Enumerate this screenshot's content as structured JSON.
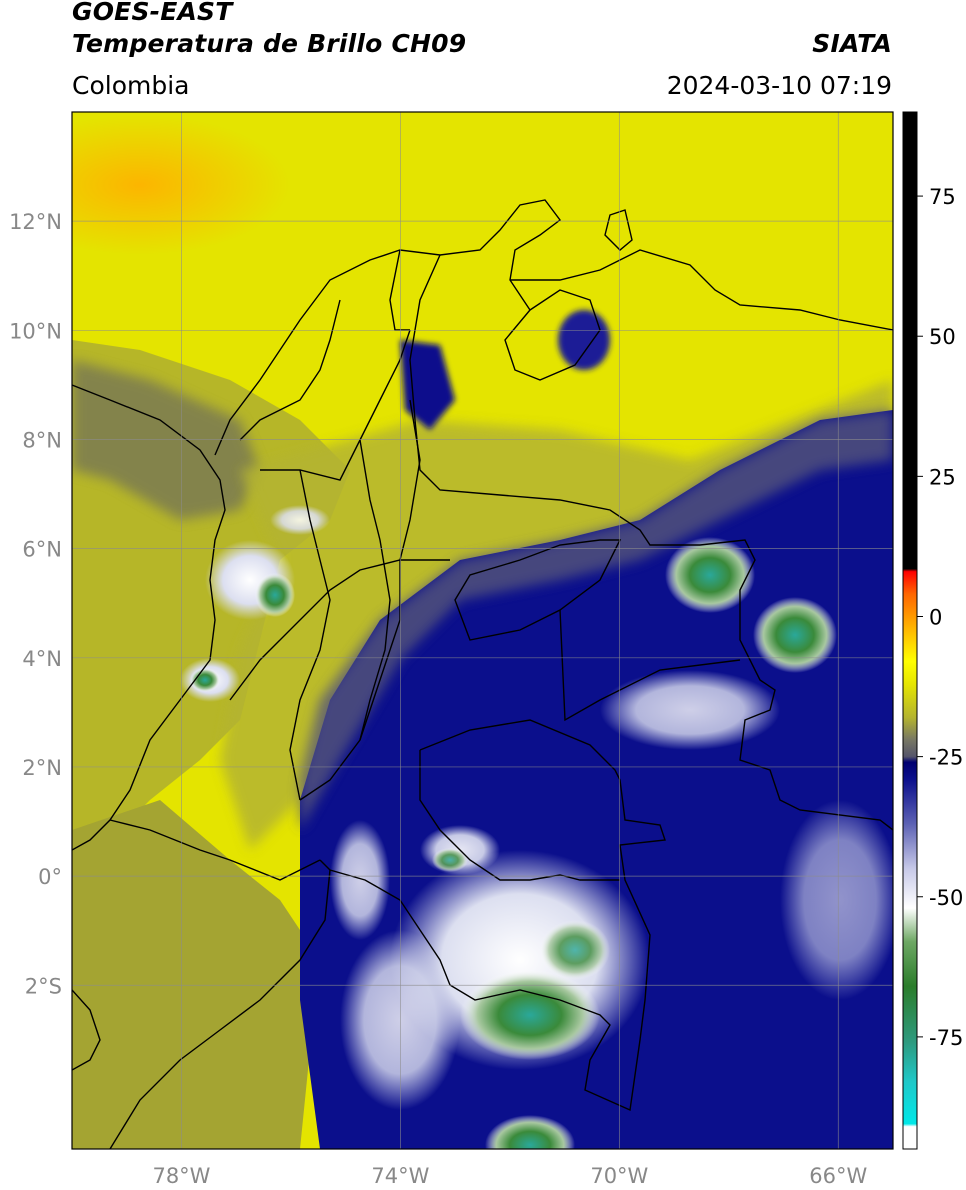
{
  "header": {
    "satellite": "GOES-EAST",
    "product": "Temperatura de Brillo CH09",
    "brand": "SIATA",
    "region": "Colombia",
    "timestamp": "2024-03-10 07:19"
  },
  "map": {
    "lon_range": [
      -80.0,
      -65.0
    ],
    "lat_range": [
      -5.0,
      14.0
    ],
    "lat_ticks": [
      {
        "value": 12,
        "label": "12°N"
      },
      {
        "value": 10,
        "label": "10°N"
      },
      {
        "value": 8,
        "label": "8°N"
      },
      {
        "value": 6,
        "label": "6°N"
      },
      {
        "value": 4,
        "label": "4°N"
      },
      {
        "value": 2,
        "label": "2°N"
      },
      {
        "value": 0,
        "label": "0°"
      },
      {
        "value": -2,
        "label": "2°S"
      }
    ],
    "lon_ticks": [
      {
        "value": -78,
        "label": "78°W"
      },
      {
        "value": -74,
        "label": "74°W"
      },
      {
        "value": -70,
        "label": "70°W"
      },
      {
        "value": -66,
        "label": "66°W"
      }
    ],
    "grid": true
  },
  "colorbar": {
    "range": [
      -95,
      90
    ],
    "ticks": [
      {
        "value": 75,
        "label": "75"
      },
      {
        "value": 50,
        "label": "50"
      },
      {
        "value": 25,
        "label": "25"
      },
      {
        "value": 0,
        "label": "0"
      },
      {
        "value": -25,
        "label": "-25"
      },
      {
        "value": -50,
        "label": "-50"
      },
      {
        "value": -75,
        "label": "-75"
      }
    ],
    "stops": [
      {
        "value": -95,
        "color": "#ffffff"
      },
      {
        "value": -91,
        "color": "#ffffff"
      },
      {
        "value": -90.5,
        "color": "#00e8e8"
      },
      {
        "value": -83,
        "color": "#1fc8c8"
      },
      {
        "value": -76,
        "color": "#2e9b80"
      },
      {
        "value": -66,
        "color": "#2b7d2b"
      },
      {
        "value": -58,
        "color": "#6ea864"
      },
      {
        "value": -52,
        "color": "#ffffff"
      },
      {
        "value": -45,
        "color": "#c7c9e8"
      },
      {
        "value": -37,
        "color": "#5d62b4"
      },
      {
        "value": -29,
        "color": "#0b0f8c"
      },
      {
        "value": -26,
        "color": "#000070"
      },
      {
        "value": -25,
        "color": "#55556a"
      },
      {
        "value": -22,
        "color": "#777764"
      },
      {
        "value": -18,
        "color": "#b4b42e"
      },
      {
        "value": -12,
        "color": "#e6e600"
      },
      {
        "value": -8,
        "color": "#ffff00"
      },
      {
        "value": -2,
        "color": "#ffb400"
      },
      {
        "value": 4,
        "color": "#ff6600"
      },
      {
        "value": 8,
        "color": "#ff0000"
      },
      {
        "value": 8.5,
        "color": "#000000"
      },
      {
        "value": 90,
        "color": "#000000"
      }
    ]
  },
  "colors": {
    "cold_top": "#0b0f8c",
    "warm_dry": "#ffff00",
    "border": "#000000",
    "grid": "#8c8c8c",
    "tick_text": "#888888"
  }
}
